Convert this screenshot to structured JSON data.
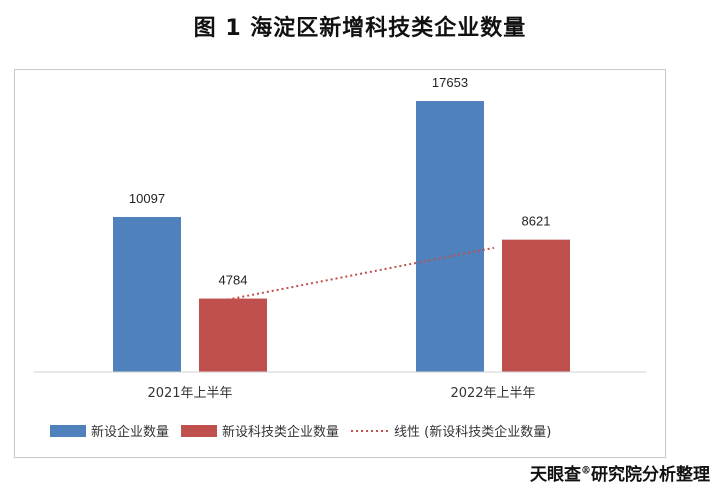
{
  "title": "图 1  海淀区新增科技类企业数量",
  "source": {
    "prefix": "天眼查",
    "registered_mark": "®",
    "suffix": "研究院分析整理"
  },
  "chart_data": {
    "type": "bar",
    "categories": [
      "2021年上半年",
      "2022年上半年"
    ],
    "series": [
      {
        "name": "新设企业数量",
        "values": [
          10097,
          17653
        ],
        "color": "#4F81BD"
      },
      {
        "name": "新设科技类企业数量",
        "values": [
          4784,
          8621
        ],
        "color": "#C0504D"
      }
    ],
    "trendline": {
      "name": "线性 (新设科技类企业数量)",
      "of_series": "新设科技类企业数量",
      "style": "dotted",
      "color": "#C0504D"
    },
    "ylim": [
      0,
      20000
    ],
    "grid": false,
    "legend_position": "bottom"
  }
}
